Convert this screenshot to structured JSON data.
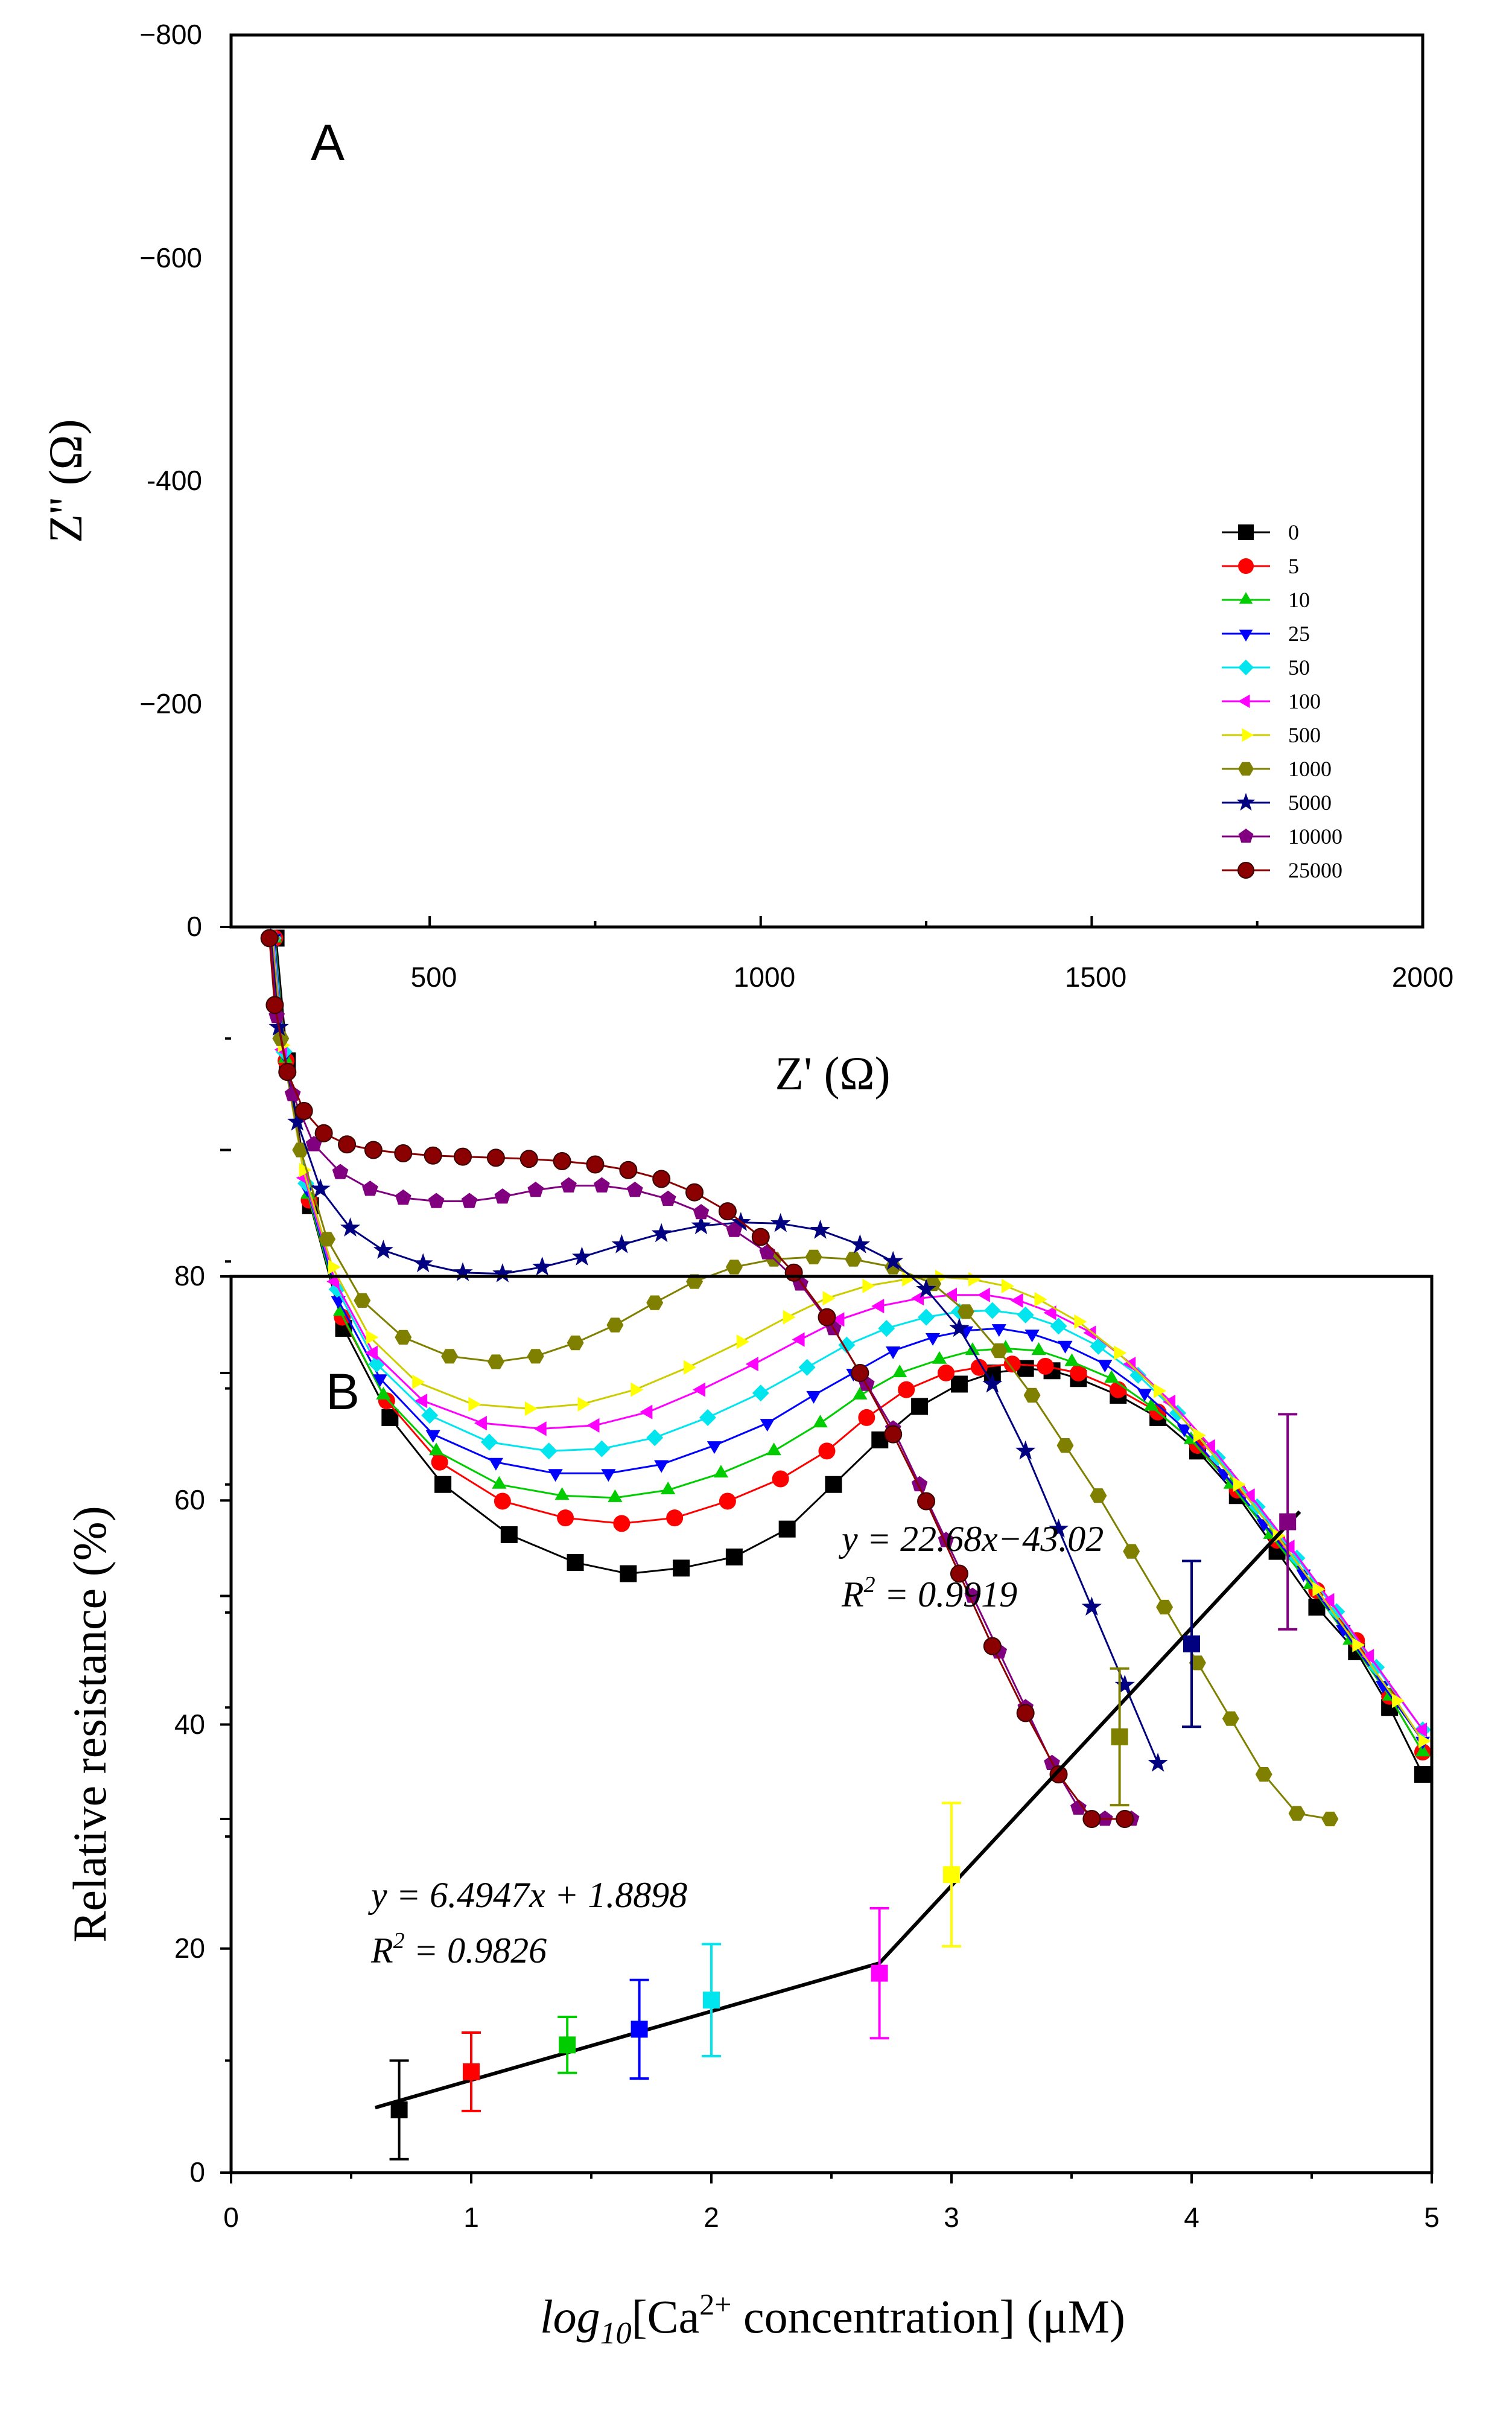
{
  "chart_data": [
    {
      "type": "scatter",
      "panel": "A",
      "xlabel": "Z' (Ω)",
      "ylabel": "Z'' (Ω)",
      "xlim": [
        200,
        2000
      ],
      "ylim": [
        0,
        -800
      ],
      "xticks": [
        500,
        1000,
        1500,
        2000
      ],
      "yticks": [
        0,
        -200,
        -400,
        -600,
        -800
      ],
      "xtick_labels": [
        "500",
        "1000",
        "1500",
        "2000"
      ],
      "ytick_labels": [
        "0",
        "−200",
        "-400",
        "−600",
        "−800"
      ],
      "legend_position": "right",
      "series": [
        {
          "name": "0",
          "color": "#000000",
          "marker": "square",
          "x": [
            268,
            285,
            320,
            370,
            440,
            520,
            620,
            720,
            800,
            880,
            960,
            1040,
            1110,
            1180,
            1240,
            1300,
            1350,
            1400,
            1440,
            1480,
            1540,
            1600,
            1660,
            1720,
            1780,
            1840,
            1900,
            1950,
            2000
          ],
          "y": [
            10,
            120,
            250,
            360,
            440,
            500,
            545,
            570,
            580,
            575,
            565,
            540,
            500,
            460,
            430,
            410,
            400,
            396,
            398,
            405,
            420,
            440,
            470,
            510,
            560,
            610,
            650,
            700,
            760
          ]
        },
        {
          "name": "5",
          "color": "#ff0000",
          "marker": "circle",
          "x": [
            266,
            283,
            318,
            368,
            435,
            515,
            610,
            705,
            790,
            870,
            950,
            1030,
            1100,
            1160,
            1220,
            1280,
            1330,
            1380,
            1430,
            1480,
            1540,
            1600,
            1660,
            1720,
            1780,
            1840,
            1900,
            1950,
            2000
          ],
          "y": [
            10,
            120,
            245,
            350,
            425,
            480,
            515,
            530,
            535,
            530,
            515,
            495,
            470,
            440,
            415,
            400,
            395,
            392,
            394,
            400,
            415,
            435,
            465,
            505,
            550,
            595,
            640,
            690,
            740
          ]
        },
        {
          "name": "10",
          "color": "#00cc00",
          "marker": "triangle-up",
          "x": [
            266,
            282,
            316,
            365,
            430,
            510,
            605,
            700,
            780,
            860,
            940,
            1020,
            1090,
            1150,
            1210,
            1270,
            1320,
            1370,
            1420,
            1470,
            1530,
            1590,
            1650,
            1710,
            1770,
            1830,
            1890,
            1950,
            2000
          ],
          "y": [
            10,
            118,
            240,
            345,
            420,
            470,
            500,
            510,
            512,
            505,
            490,
            470,
            445,
            420,
            400,
            388,
            380,
            378,
            380,
            390,
            405,
            430,
            460,
            500,
            545,
            590,
            640,
            690,
            740
          ]
        },
        {
          "name": "25",
          "color": "#0000ff",
          "marker": "triangle-down",
          "x": [
            265,
            281,
            315,
            362,
            425,
            505,
            600,
            690,
            770,
            850,
            930,
            1010,
            1080,
            1140,
            1200,
            1260,
            1310,
            1360,
            1410,
            1460,
            1520,
            1580,
            1640,
            1700,
            1760,
            1820,
            1880,
            1940,
            2000
          ],
          "y": [
            10,
            115,
            235,
            335,
            405,
            455,
            480,
            490,
            490,
            482,
            465,
            445,
            420,
            400,
            380,
            368,
            362,
            360,
            365,
            375,
            392,
            418,
            450,
            490,
            535,
            580,
            630,
            680,
            730
          ]
        },
        {
          "name": "50",
          "color": "#00e5ee",
          "marker": "diamond",
          "x": [
            264,
            280,
            313,
            360,
            420,
            500,
            590,
            680,
            760,
            840,
            920,
            1000,
            1070,
            1130,
            1190,
            1250,
            1300,
            1350,
            1400,
            1450,
            1510,
            1570,
            1630,
            1690,
            1750,
            1810,
            1870,
            1930,
            2000
          ],
          "y": [
            10,
            112,
            230,
            325,
            392,
            438,
            462,
            470,
            468,
            458,
            440,
            418,
            395,
            375,
            360,
            350,
            345,
            344,
            348,
            358,
            376,
            402,
            436,
            476,
            520,
            566,
            614,
            664,
            720
          ]
        },
        {
          "name": "100",
          "color": "#ff00ff",
          "marker": "triangle-left",
          "x": [
            263,
            278,
            311,
            357,
            415,
            490,
            580,
            670,
            750,
            830,
            910,
            990,
            1060,
            1120,
            1180,
            1240,
            1290,
            1340,
            1390,
            1440,
            1500,
            1560,
            1620,
            1680,
            1740,
            1800,
            1860,
            1920,
            2000
          ],
          "y": [
            10,
            110,
            225,
            318,
            382,
            425,
            445,
            450,
            447,
            435,
            415,
            392,
            370,
            352,
            340,
            333,
            330,
            330,
            335,
            346,
            364,
            392,
            426,
            466,
            510,
            556,
            604,
            654,
            720
          ]
        },
        {
          "name": "500",
          "color": "#ffff00",
          "marker": "triangle-right",
          "x": [
            262,
            277,
            309,
            353,
            410,
            480,
            565,
            650,
            730,
            810,
            890,
            970,
            1040,
            1100,
            1160,
            1220,
            1270,
            1320,
            1370,
            1420,
            1480,
            1540,
            1600,
            1660,
            1720,
            1780,
            1840,
            1900,
            1960,
            2000
          ],
          "y": [
            10,
            106,
            218,
            305,
            368,
            408,
            428,
            432,
            428,
            415,
            395,
            372,
            350,
            333,
            322,
            316,
            314,
            316,
            322,
            334,
            354,
            382,
            416,
            456,
            500,
            546,
            594,
            644,
            694,
            730
          ]
        },
        {
          "name": "1000",
          "color": "#808000",
          "marker": "hexagon",
          "x": [
            261,
            275,
            305,
            345,
            398,
            460,
            530,
            600,
            660,
            720,
            780,
            840,
            900,
            960,
            1020,
            1080,
            1140,
            1200,
            1260,
            1310,
            1360,
            1410,
            1460,
            1510,
            1560,
            1610,
            1660,
            1710,
            1760,
            1810,
            1860
          ],
          "y": [
            10,
            100,
            200,
            280,
            335,
            368,
            385,
            390,
            385,
            373,
            357,
            337,
            318,
            305,
            298,
            296,
            298,
            305,
            320,
            345,
            380,
            420,
            465,
            510,
            560,
            610,
            660,
            710,
            760,
            795,
            800
          ]
        },
        {
          "name": "5000",
          "color": "#000080",
          "marker": "star",
          "x": [
            260,
            272,
            300,
            335,
            380,
            430,
            490,
            550,
            610,
            670,
            730,
            790,
            850,
            910,
            970,
            1030,
            1090,
            1150,
            1200,
            1250,
            1300,
            1350,
            1400,
            1450,
            1500,
            1550,
            1600
          ],
          "y": [
            10,
            90,
            175,
            235,
            270,
            290,
            302,
            310,
            311,
            305,
            296,
            285,
            275,
            268,
            265,
            266,
            272,
            285,
            300,
            325,
            360,
            410,
            470,
            540,
            610,
            680,
            750
          ]
        },
        {
          "name": "10000",
          "color": "#800080",
          "marker": "pentagon",
          "x": [
            259,
            269,
            293,
            325,
            365,
            410,
            460,
            510,
            560,
            610,
            660,
            710,
            760,
            810,
            860,
            910,
            960,
            1010,
            1060,
            1110,
            1160,
            1200,
            1240,
            1280,
            1320,
            1360,
            1400,
            1440,
            1480,
            1520,
            1560
          ],
          "y": [
            10,
            80,
            150,
            195,
            220,
            235,
            243,
            246,
            246,
            242,
            236,
            232,
            232,
            236,
            244,
            256,
            272,
            292,
            320,
            360,
            410,
            450,
            500,
            550,
            600,
            650,
            700,
            750,
            790,
            800,
            800
          ]
        },
        {
          "name": "25000",
          "color": "#8b0000",
          "marker": "sphere",
          "x": [
            258,
            266,
            285,
            310,
            340,
            375,
            415,
            460,
            505,
            550,
            600,
            650,
            700,
            750,
            800,
            850,
            900,
            950,
            1000,
            1050,
            1100,
            1150,
            1200,
            1250,
            1300,
            1350,
            1400,
            1450,
            1500,
            1550
          ],
          "y": [
            10,
            70,
            130,
            165,
            185,
            195,
            200,
            203,
            205,
            206,
            207,
            208,
            210,
            213,
            218,
            226,
            238,
            255,
            278,
            310,
            350,
            400,
            455,
            515,
            580,
            645,
            705,
            760,
            800,
            800
          ]
        }
      ]
    },
    {
      "type": "scatter",
      "panel": "B",
      "xlabel_prefix": "log",
      "xlabel_sub": "10",
      "xlabel_mid": "[Ca",
      "xlabel_sup": "2+",
      "xlabel_suffix": " concentration] (μM)",
      "ylabel": "Relative resistance (%)",
      "xlim": [
        0,
        5
      ],
      "ylim": [
        0,
        80
      ],
      "xticks": [
        0,
        1,
        2,
        3,
        4,
        5
      ],
      "yticks": [
        0,
        20,
        40,
        60,
        80
      ],
      "xtick_labels": [
        "0",
        "1",
        "2",
        "3",
        "4",
        "5"
      ],
      "ytick_labels": [
        "0",
        "20",
        "40",
        "60",
        "80"
      ],
      "points": [
        {
          "x": 0.7,
          "y": 5.6,
          "err": 4.4,
          "color": "#000000"
        },
        {
          "x": 1.0,
          "y": 9.0,
          "err": 3.5,
          "color": "#ff0000"
        },
        {
          "x": 1.4,
          "y": 11.4,
          "err": 2.5,
          "color": "#00cc00"
        },
        {
          "x": 1.7,
          "y": 12.8,
          "err": 4.4,
          "color": "#0000ff"
        },
        {
          "x": 2.0,
          "y": 15.4,
          "err": 5.0,
          "color": "#00e5ee"
        },
        {
          "x": 2.7,
          "y": 17.8,
          "err": 5.8,
          "color": "#ff00ff"
        },
        {
          "x": 3.0,
          "y": 26.6,
          "err": 6.4,
          "color": "#ffff00"
        },
        {
          "x": 3.7,
          "y": 38.9,
          "err": 6.1,
          "color": "#808000"
        },
        {
          "x": 4.0,
          "y": 47.2,
          "err": 7.4,
          "color": "#000080"
        },
        {
          "x": 4.4,
          "y": 58.1,
          "err": 9.6,
          "color": "#800080"
        }
      ],
      "fit_lines": [
        {
          "x": [
            0.6,
            2.7
          ],
          "y": [
            5.8,
            18.7
          ]
        },
        {
          "x": [
            2.7,
            4.45
          ],
          "y": [
            18.7,
            59.0
          ]
        }
      ],
      "equations": [
        {
          "eq": "y = 6.4947x + 1.8898",
          "r2_prefix": "R",
          "r2_sup": "2",
          "r2_value": " = 0.9826"
        },
        {
          "eq": "y = 22.68x−43.02",
          "r2_prefix": "R",
          "r2_sup": "2",
          "r2_value": " = 0.9919"
        }
      ]
    }
  ],
  "panel_labels": [
    "A",
    "B"
  ]
}
